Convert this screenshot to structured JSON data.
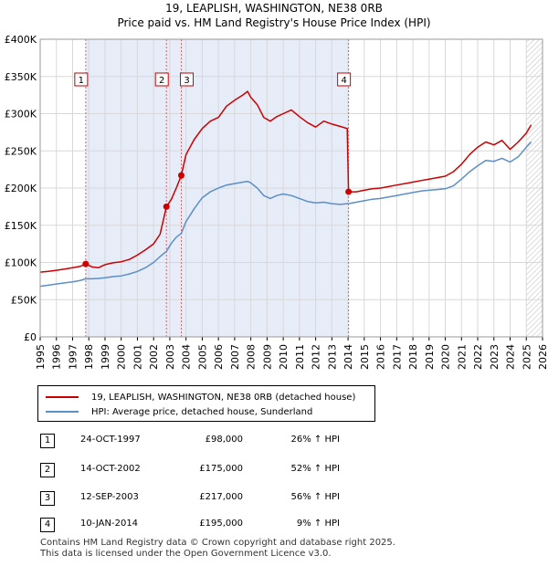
{
  "chart_data": {
    "type": "line",
    "title": "19, LEAPLISH, WASHINGTON, NE38 0RB",
    "subtitle": "Price paid vs. HM Land Registry's House Price Index (HPI)",
    "xlabel": "",
    "ylabel": "",
    "xlim": [
      1995,
      2026
    ],
    "ylim": [
      0,
      400000
    ],
    "x_ticks": [
      "1995",
      "1996",
      "1997",
      "1998",
      "1999",
      "2000",
      "2001",
      "2002",
      "2003",
      "2004",
      "2005",
      "2006",
      "2007",
      "2008",
      "2009",
      "2010",
      "2011",
      "2012",
      "2013",
      "2014",
      "2015",
      "2016",
      "2017",
      "2018",
      "2019",
      "2020",
      "2021",
      "2022",
      "2023",
      "2024",
      "2025",
      "2026"
    ],
    "y_ticks": [
      {
        "value": 0,
        "label": "£0"
      },
      {
        "value": 50000,
        "label": "£50K"
      },
      {
        "value": 100000,
        "label": "£100K"
      },
      {
        "value": 150000,
        "label": "£150K"
      },
      {
        "value": 200000,
        "label": "£200K"
      },
      {
        "value": 250000,
        "label": "£250K"
      },
      {
        "value": 300000,
        "label": "£300K"
      },
      {
        "value": 350000,
        "label": "£350K"
      },
      {
        "value": 400000,
        "label": "£400K"
      }
    ],
    "grid": true,
    "ownership_shading": [
      [
        1997.81,
        2014.03
      ]
    ],
    "future_hatch_from": 2025.0,
    "series": [
      {
        "name": "19, LEAPLISH, WASHINGTON, NE38 0RB (detached house)",
        "color": "#cc0000",
        "points": [
          [
            1995.0,
            87000
          ],
          [
            1995.5,
            88000
          ],
          [
            1996.0,
            89500
          ],
          [
            1996.5,
            91000
          ],
          [
            1997.0,
            93000
          ],
          [
            1997.5,
            95000
          ],
          [
            1997.81,
            98000
          ],
          [
            1998.2,
            94000
          ],
          [
            1998.6,
            93000
          ],
          [
            1999.0,
            97000
          ],
          [
            1999.5,
            99500
          ],
          [
            2000.0,
            101000
          ],
          [
            2000.5,
            104000
          ],
          [
            2001.0,
            110000
          ],
          [
            2001.5,
            117000
          ],
          [
            2002.0,
            125000
          ],
          [
            2002.4,
            138000
          ],
          [
            2002.79,
            175000
          ],
          [
            2003.1,
            185000
          ],
          [
            2003.4,
            200000
          ],
          [
            2003.71,
            217000
          ],
          [
            2004.0,
            245000
          ],
          [
            2004.5,
            265000
          ],
          [
            2005.0,
            280000
          ],
          [
            2005.5,
            290000
          ],
          [
            2006.0,
            295000
          ],
          [
            2006.5,
            310000
          ],
          [
            2007.0,
            318000
          ],
          [
            2007.5,
            325000
          ],
          [
            2007.8,
            330000
          ],
          [
            2008.0,
            322000
          ],
          [
            2008.4,
            312000
          ],
          [
            2008.8,
            295000
          ],
          [
            2009.2,
            290000
          ],
          [
            2009.6,
            296000
          ],
          [
            2010.0,
            300000
          ],
          [
            2010.5,
            305000
          ],
          [
            2011.0,
            296000
          ],
          [
            2011.5,
            288000
          ],
          [
            2012.0,
            282000
          ],
          [
            2012.5,
            290000
          ],
          [
            2013.0,
            286000
          ],
          [
            2013.5,
            283000
          ],
          [
            2013.95,
            280000
          ],
          [
            2014.03,
            195000
          ],
          [
            2014.5,
            195000
          ],
          [
            2015.0,
            197000
          ],
          [
            2015.5,
            199000
          ],
          [
            2016.0,
            200000
          ],
          [
            2016.5,
            202000
          ],
          [
            2017.0,
            204000
          ],
          [
            2017.5,
            206000
          ],
          [
            2018.0,
            208000
          ],
          [
            2018.5,
            210000
          ],
          [
            2019.0,
            212000
          ],
          [
            2019.5,
            214000
          ],
          [
            2020.0,
            216000
          ],
          [
            2020.5,
            222000
          ],
          [
            2021.0,
            232000
          ],
          [
            2021.5,
            245000
          ],
          [
            2022.0,
            255000
          ],
          [
            2022.5,
            262000
          ],
          [
            2023.0,
            258000
          ],
          [
            2023.5,
            264000
          ],
          [
            2024.0,
            252000
          ],
          [
            2024.5,
            262000
          ],
          [
            2025.0,
            274000
          ],
          [
            2025.3,
            285000
          ]
        ]
      },
      {
        "name": "HPI: Average price, detached house, Sunderland",
        "color": "#5b8fc9",
        "points": [
          [
            1995.0,
            68000
          ],
          [
            1995.5,
            69500
          ],
          [
            1996.0,
            71000
          ],
          [
            1996.5,
            72500
          ],
          [
            1997.0,
            74000
          ],
          [
            1997.5,
            76000
          ],
          [
            1997.81,
            78000
          ],
          [
            1998.2,
            78000
          ],
          [
            1998.6,
            78500
          ],
          [
            1999.0,
            79500
          ],
          [
            1999.5,
            81000
          ],
          [
            2000.0,
            82000
          ],
          [
            2000.5,
            84500
          ],
          [
            2001.0,
            88000
          ],
          [
            2001.5,
            93000
          ],
          [
            2002.0,
            100000
          ],
          [
            2002.4,
            108000
          ],
          [
            2002.79,
            115000
          ],
          [
            2003.1,
            126000
          ],
          [
            2003.4,
            134000
          ],
          [
            2003.71,
            139000
          ],
          [
            2004.0,
            155000
          ],
          [
            2004.5,
            172000
          ],
          [
            2005.0,
            187000
          ],
          [
            2005.5,
            195000
          ],
          [
            2006.0,
            200000
          ],
          [
            2006.5,
            204000
          ],
          [
            2007.0,
            206000
          ],
          [
            2007.5,
            208000
          ],
          [
            2007.8,
            209000
          ],
          [
            2008.0,
            207000
          ],
          [
            2008.4,
            200000
          ],
          [
            2008.8,
            190000
          ],
          [
            2009.2,
            186000
          ],
          [
            2009.6,
            190000
          ],
          [
            2010.0,
            192000
          ],
          [
            2010.5,
            190000
          ],
          [
            2011.0,
            186000
          ],
          [
            2011.5,
            182000
          ],
          [
            2012.0,
            180000
          ],
          [
            2012.5,
            181000
          ],
          [
            2013.0,
            179000
          ],
          [
            2013.5,
            178000
          ],
          [
            2013.95,
            179000
          ],
          [
            2014.03,
            179000
          ],
          [
            2014.5,
            181000
          ],
          [
            2015.0,
            183000
          ],
          [
            2015.5,
            185000
          ],
          [
            2016.0,
            186000
          ],
          [
            2016.5,
            188000
          ],
          [
            2017.0,
            190000
          ],
          [
            2017.5,
            192000
          ],
          [
            2018.0,
            194000
          ],
          [
            2018.5,
            196000
          ],
          [
            2019.0,
            197000
          ],
          [
            2019.5,
            198000
          ],
          [
            2020.0,
            199000
          ],
          [
            2020.5,
            203000
          ],
          [
            2021.0,
            212000
          ],
          [
            2021.5,
            222000
          ],
          [
            2022.0,
            230000
          ],
          [
            2022.5,
            237000
          ],
          [
            2023.0,
            236000
          ],
          [
            2023.5,
            240000
          ],
          [
            2024.0,
            235000
          ],
          [
            2024.5,
            242000
          ],
          [
            2025.0,
            255000
          ],
          [
            2025.3,
            262000
          ]
        ]
      }
    ],
    "sales": [
      {
        "label": "1",
        "x": 1997.81,
        "price": 98000
      },
      {
        "label": "2",
        "x": 2002.79,
        "price": 175000
      },
      {
        "label": "3",
        "x": 2003.71,
        "price": 217000
      },
      {
        "label": "4",
        "x": 2014.03,
        "price": 195000
      }
    ]
  },
  "legend": {
    "property_label": "19, LEAPLISH, WASHINGTON, NE38 0RB (detached house)",
    "hpi_label": "HPI: Average price, detached house, Sunderland"
  },
  "transactions": [
    {
      "num": "1",
      "date": "24-OCT-1997",
      "price": "£98,000",
      "hpi": "26% ↑ HPI"
    },
    {
      "num": "2",
      "date": "14-OCT-2002",
      "price": "£175,000",
      "hpi": "52% ↑ HPI"
    },
    {
      "num": "3",
      "date": "12-SEP-2003",
      "price": "£217,000",
      "hpi": "56% ↑ HPI"
    },
    {
      "num": "4",
      "date": "10-JAN-2014",
      "price": "£195,000",
      "hpi": "9% ↑ HPI"
    }
  ],
  "footer": {
    "line1": "Contains HM Land Registry data © Crown copyright and database right 2025.",
    "line2": "This data is licensed under the Open Government Licence v3.0."
  }
}
